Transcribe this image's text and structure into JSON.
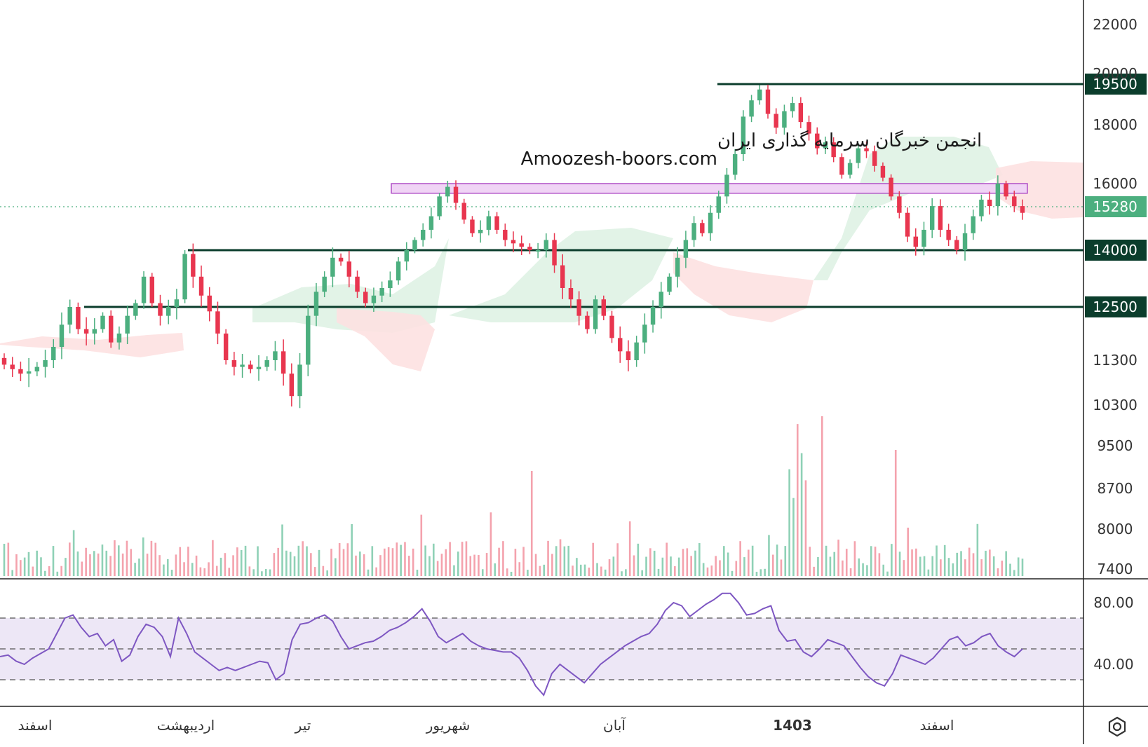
{
  "watermark": {
    "line1": "انجمن خبرگان سرمایه گذاری ایران",
    "line2": "Amoozesh-boors.com"
  },
  "colors": {
    "up": "#4caf7f",
    "down": "#e8364f",
    "volume_up": "#8fd1b6",
    "volume_down": "#f4a2ad",
    "level_line": "#0b3d2c",
    "level_label_bg": "#0b3d2c",
    "current_label_bg": "#4caf7f",
    "rsi_line": "#7e57c2",
    "rsi_band": "#ede7f6",
    "zone_fill": "#f0d4f5",
    "zone_stroke": "#b04fc7",
    "cloud_bull": "#dff2e4",
    "cloud_bear": "#fde1e1",
    "dotted_line": "#4caf7f"
  },
  "chart_data": [
    {
      "type": "candlestick",
      "price_axis_ticks": [
        "22000",
        "20000",
        "18000",
        "16000",
        "11300",
        "10300",
        "9500",
        "8700",
        "8000",
        "7400"
      ],
      "horizontal_levels": [
        "19500",
        "14000",
        "12500"
      ],
      "current_price": "15280",
      "resistance_zone_approx": [
        15700,
        16000
      ],
      "x_axis_labels": [
        "اسفند",
        "اردیبهشت",
        "تیر",
        "شهریور",
        "آبان",
        "1403",
        "اسفند"
      ],
      "bold_x_label": "1403",
      "price_path_approx": [
        11200,
        11100,
        11000,
        11050,
        11150,
        11300,
        11600,
        12100,
        12500,
        12000,
        11900,
        12000,
        12300,
        11700,
        11900,
        12300,
        12600,
        13300,
        12600,
        12300,
        12500,
        12700,
        13900,
        13300,
        12800,
        12400,
        11900,
        11300,
        11150,
        11200,
        11100,
        11150,
        11300,
        11500,
        11000,
        10500,
        11200,
        12300,
        12900,
        13300,
        13800,
        13700,
        13300,
        12900,
        12600,
        12800,
        13000,
        13200,
        13700,
        14000,
        14300,
        14600,
        15000,
        15600,
        15900,
        15400,
        14900,
        14500,
        14600,
        15000,
        14600,
        14300,
        14200,
        14100,
        14000,
        14000,
        14300,
        13600,
        13000,
        12700,
        12300,
        12000,
        12700,
        12300,
        11800,
        11500,
        11300,
        11700,
        12100,
        12500,
        12900,
        13300,
        13800,
        14300,
        14800,
        14500,
        15100,
        15600,
        16300,
        17000,
        18300,
        18900,
        19300,
        18400,
        17900,
        18500,
        18800,
        18100,
        17700,
        17200,
        17400,
        16900,
        16300,
        16700,
        17200,
        17100,
        16600,
        16200,
        15600,
        15100,
        14400,
        14100,
        14600,
        15300,
        14600,
        14300,
        14000,
        14500,
        15000,
        15500,
        15300,
        16000,
        15600,
        15300,
        15100
      ],
      "volume_bars": "relative volume histogram beneath price, highest spike near 1403 rally"
    },
    {
      "type": "line",
      "name": "RSI",
      "y_axis_ticks": [
        "80.00",
        "40.00"
      ],
      "band": [
        30,
        70
      ],
      "midline": 50,
      "values_approx": [
        45,
        46,
        42,
        40,
        44,
        47,
        50,
        60,
        70,
        72,
        64,
        58,
        60,
        52,
        56,
        42,
        46,
        58,
        66,
        64,
        58,
        45,
        70,
        60,
        48,
        44,
        40,
        36,
        38,
        36,
        38,
        40,
        42,
        41,
        30,
        34,
        56,
        66,
        67,
        70,
        72,
        68,
        58,
        50,
        52,
        54,
        55,
        58,
        62,
        64,
        67,
        71,
        76,
        68,
        58,
        54,
        57,
        60,
        55,
        52,
        50,
        49,
        48,
        48,
        44,
        36,
        26,
        20,
        34,
        40,
        36,
        32,
        28,
        34,
        40,
        44,
        48,
        52,
        55,
        58,
        60,
        66,
        75,
        80,
        78,
        71,
        75,
        79,
        82,
        86,
        86,
        80,
        72,
        73,
        76,
        78,
        62,
        55,
        56,
        48,
        45,
        50,
        56,
        54,
        52,
        45,
        38,
        32,
        28,
        26,
        34,
        46,
        44,
        42,
        40,
        44,
        50,
        56,
        58,
        52,
        54,
        58,
        60,
        52,
        48,
        45,
        50
      ]
    }
  ]
}
